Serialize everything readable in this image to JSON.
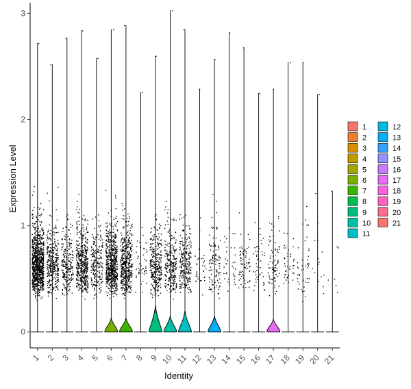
{
  "chart_data": {
    "type": "violin",
    "xlabel": "Identity",
    "ylabel": "Expression Level",
    "ylim": [
      -0.15,
      3.1
    ],
    "yticks": [
      0,
      1,
      2,
      3
    ],
    "grid": false,
    "legend_position": "right",
    "points": "jittered single-cell expression values overlaid on violins",
    "categories": [
      "1",
      "2",
      "3",
      "4",
      "5",
      "6",
      "7",
      "8",
      "9",
      "10",
      "11",
      "12",
      "13",
      "14",
      "15",
      "16",
      "17",
      "18",
      "19",
      "20",
      "21"
    ],
    "series": [
      {
        "name": "1",
        "color": "#F8766D",
        "max": 2.72,
        "zero_density_peak": 0.0,
        "nonzero_points": 900
      },
      {
        "name": "2",
        "color": "#EA8331",
        "max": 2.52,
        "zero_density_peak": 0.0,
        "nonzero_points": 330
      },
      {
        "name": "3",
        "color": "#D89000",
        "max": 2.77,
        "zero_density_peak": 0.0,
        "nonzero_points": 230
      },
      {
        "name": "4",
        "color": "#C09B00",
        "max": 2.84,
        "zero_density_peak": 0.0,
        "nonzero_points": 480
      },
      {
        "name": "5",
        "color": "#A3A500",
        "max": 2.58,
        "zero_density_peak": 0.0,
        "nonzero_points": 210
      },
      {
        "name": "6",
        "color": "#7CAE00",
        "max": 2.85,
        "zero_density_peak": 0.14,
        "nonzero_points": 620
      },
      {
        "name": "7",
        "color": "#39B600",
        "max": 2.89,
        "zero_density_peak": 0.14,
        "nonzero_points": 470
      },
      {
        "name": "8",
        "color": "#00BB4E",
        "max": 2.26,
        "zero_density_peak": 0.0,
        "nonzero_points": 45
      },
      {
        "name": "9",
        "color": "#00BF7D",
        "max": 2.6,
        "zero_density_peak": 0.26,
        "nonzero_points": 300
      },
      {
        "name": "10",
        "color": "#00C1A3",
        "max": 3.03,
        "zero_density_peak": 0.16,
        "nonzero_points": 260
      },
      {
        "name": "11",
        "color": "#00BFC4",
        "max": 2.85,
        "zero_density_peak": 0.21,
        "nonzero_points": 240
      },
      {
        "name": "12",
        "color": "#00BAE0",
        "max": 2.29,
        "zero_density_peak": 0.0,
        "nonzero_points": 35
      },
      {
        "name": "13",
        "color": "#00B0F6",
        "max": 2.57,
        "zero_density_peak": 0.16,
        "nonzero_points": 110
      },
      {
        "name": "14",
        "color": "#35A2FF",
        "max": 2.82,
        "zero_density_peak": 0.0,
        "nonzero_points": 35
      },
      {
        "name": "15",
        "color": "#9590FF",
        "max": 2.68,
        "zero_density_peak": 0.0,
        "nonzero_points": 70
      },
      {
        "name": "16",
        "color": "#C77CFF",
        "max": 2.25,
        "zero_density_peak": 0.0,
        "nonzero_points": 45
      },
      {
        "name": "17",
        "color": "#E76BF3",
        "max": 2.29,
        "zero_density_peak": 0.13,
        "nonzero_points": 80
      },
      {
        "name": "18",
        "color": "#FA62DB",
        "max": 2.54,
        "zero_density_peak": 0.0,
        "nonzero_points": 45
      },
      {
        "name": "19",
        "color": "#FF62BC",
        "max": 2.54,
        "zero_density_peak": 0.0,
        "nonzero_points": 45
      },
      {
        "name": "20",
        "color": "#FF6C91",
        "max": 2.24,
        "zero_density_peak": 0.0,
        "nonzero_points": 15
      },
      {
        "name": "21",
        "color": "#F8766D",
        "max": 1.33,
        "zero_density_peak": 0.0,
        "nonzero_points": 6
      }
    ]
  }
}
